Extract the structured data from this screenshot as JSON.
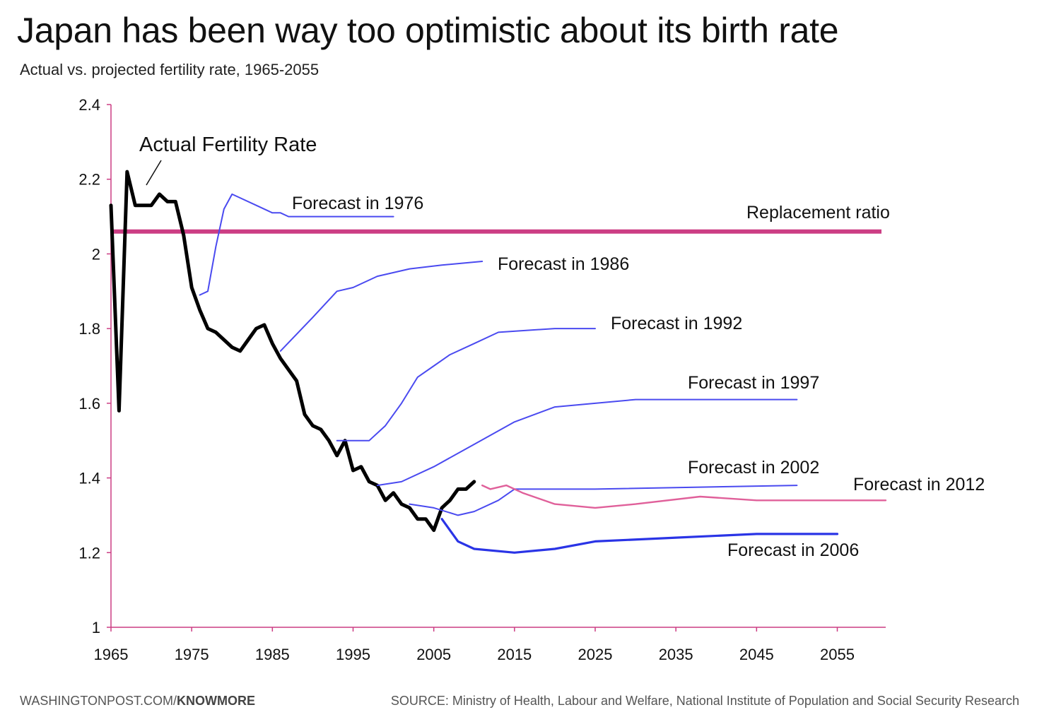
{
  "header": {
    "title": "Japan has been way too optimistic about its birth rate",
    "subtitle": "Actual vs. projected fertility rate, 1965-2055"
  },
  "footer": {
    "site": "WASHINGTONPOST.COM/",
    "section": "KNOWMORE",
    "source": "SOURCE: Ministry of Health, Labour and Welfare, National Institute of Population and Social Security Research"
  },
  "chart_data": {
    "type": "line",
    "title": "Japan has been way too optimistic about its birth rate",
    "subtitle": "Actual vs. projected fertility rate, 1965-2055",
    "xlim": [
      1965,
      2061
    ],
    "ylim": [
      1,
      2.4
    ],
    "x_ticks": [
      "1965",
      "1975",
      "1985",
      "1995",
      "2005",
      "2015",
      "2025",
      "2035",
      "2045",
      "2055"
    ],
    "y_ticks": [
      "1",
      "1.2",
      "1.4",
      "1.6",
      "1.8",
      "2",
      "2.2",
      "2.4"
    ],
    "colors": {
      "actual": "#000000",
      "forecast": "#4a4af0",
      "forecast_2006": "#2a34e6",
      "forecast_2012": "#e0609a",
      "replacement": "#cc3d84",
      "axis": "#cc3d84"
    },
    "replacement": {
      "label": "Replacement ratio",
      "value": 2.06
    },
    "series": [
      {
        "name": "Actual Fertility Rate",
        "color": "#000000",
        "points": [
          [
            1965,
            2.13
          ],
          [
            1966,
            1.58
          ],
          [
            1967,
            2.22
          ],
          [
            1968,
            2.13
          ],
          [
            1969,
            2.13
          ],
          [
            1970,
            2.13
          ],
          [
            1971,
            2.16
          ],
          [
            1972,
            2.14
          ],
          [
            1973,
            2.14
          ],
          [
            1974,
            2.05
          ],
          [
            1975,
            1.91
          ],
          [
            1976,
            1.85
          ],
          [
            1977,
            1.8
          ],
          [
            1978,
            1.79
          ],
          [
            1979,
            1.77
          ],
          [
            1980,
            1.75
          ],
          [
            1981,
            1.74
          ],
          [
            1982,
            1.77
          ],
          [
            1983,
            1.8
          ],
          [
            1984,
            1.81
          ],
          [
            1985,
            1.76
          ],
          [
            1986,
            1.72
          ],
          [
            1987,
            1.69
          ],
          [
            1988,
            1.66
          ],
          [
            1989,
            1.57
          ],
          [
            1990,
            1.54
          ],
          [
            1991,
            1.53
          ],
          [
            1992,
            1.5
          ],
          [
            1993,
            1.46
          ],
          [
            1994,
            1.5
          ],
          [
            1995,
            1.42
          ],
          [
            1996,
            1.43
          ],
          [
            1997,
            1.39
          ],
          [
            1998,
            1.38
          ],
          [
            1999,
            1.34
          ],
          [
            2000,
            1.36
          ],
          [
            2001,
            1.33
          ],
          [
            2002,
            1.32
          ],
          [
            2003,
            1.29
          ],
          [
            2004,
            1.29
          ],
          [
            2005,
            1.26
          ],
          [
            2006,
            1.32
          ],
          [
            2007,
            1.34
          ],
          [
            2008,
            1.37
          ],
          [
            2009,
            1.37
          ],
          [
            2010,
            1.39
          ]
        ]
      },
      {
        "name": "Forecast in 1976",
        "color": "#4a4af0",
        "points": [
          [
            1976,
            1.89
          ],
          [
            1977,
            1.9
          ],
          [
            1978,
            2.02
          ],
          [
            1979,
            2.12
          ],
          [
            1980,
            2.16
          ],
          [
            1981,
            2.15
          ],
          [
            1983,
            2.13
          ],
          [
            1985,
            2.11
          ],
          [
            1986,
            2.11
          ],
          [
            1987,
            2.1
          ],
          [
            1990,
            2.1
          ],
          [
            2000,
            2.1
          ]
        ]
      },
      {
        "name": "Forecast in 1986",
        "color": "#4a4af0",
        "points": [
          [
            1986,
            1.74
          ],
          [
            1990,
            1.83
          ],
          [
            1993,
            1.9
          ],
          [
            1995,
            1.91
          ],
          [
            1998,
            1.94
          ],
          [
            2002,
            1.96
          ],
          [
            2006,
            1.97
          ],
          [
            2011,
            1.98
          ]
        ]
      },
      {
        "name": "Forecast in 1992",
        "color": "#4a4af0",
        "points": [
          [
            1993,
            1.5
          ],
          [
            1997,
            1.5
          ],
          [
            1999,
            1.54
          ],
          [
            2001,
            1.6
          ],
          [
            2003,
            1.67
          ],
          [
            2005,
            1.7
          ],
          [
            2007,
            1.73
          ],
          [
            2010,
            1.76
          ],
          [
            2013,
            1.79
          ],
          [
            2020,
            1.8
          ],
          [
            2025,
            1.8
          ]
        ]
      },
      {
        "name": "Forecast in 1997",
        "color": "#4a4af0",
        "points": [
          [
            1998,
            1.38
          ],
          [
            2001,
            1.39
          ],
          [
            2005,
            1.43
          ],
          [
            2010,
            1.49
          ],
          [
            2015,
            1.55
          ],
          [
            2020,
            1.59
          ],
          [
            2025,
            1.6
          ],
          [
            2030,
            1.61
          ],
          [
            2040,
            1.61
          ],
          [
            2050,
            1.61
          ]
        ]
      },
      {
        "name": "Forecast in 2002",
        "color": "#4a4af0",
        "points": [
          [
            2002,
            1.33
          ],
          [
            2005,
            1.32
          ],
          [
            2008,
            1.3
          ],
          [
            2010,
            1.31
          ],
          [
            2013,
            1.34
          ],
          [
            2015,
            1.37
          ],
          [
            2025,
            1.37
          ],
          [
            2050,
            1.38
          ]
        ]
      },
      {
        "name": "Forecast in 2006",
        "color": "#2a34e6",
        "points": [
          [
            2006,
            1.29
          ],
          [
            2008,
            1.23
          ],
          [
            2010,
            1.21
          ],
          [
            2015,
            1.2
          ],
          [
            2020,
            1.21
          ],
          [
            2025,
            1.23
          ],
          [
            2035,
            1.24
          ],
          [
            2045,
            1.25
          ],
          [
            2050,
            1.25
          ],
          [
            2055,
            1.25
          ]
        ]
      },
      {
        "name": "Forecast in 2012",
        "color": "#e0609a",
        "points": [
          [
            2011,
            1.38
          ],
          [
            2012,
            1.37
          ],
          [
            2014,
            1.38
          ],
          [
            2016,
            1.36
          ],
          [
            2020,
            1.33
          ],
          [
            2025,
            1.32
          ],
          [
            2030,
            1.33
          ],
          [
            2038,
            1.35
          ],
          [
            2045,
            1.34
          ],
          [
            2050,
            1.34
          ],
          [
            2061,
            1.34
          ]
        ]
      }
    ],
    "labels": {
      "actual": "Actual Fertility Rate",
      "f1976": "Forecast in 1976",
      "f1986": "Forecast in 1986",
      "f1992": "Forecast in 1992",
      "f1997": "Forecast in 1997",
      "f2002": "Forecast in 2002",
      "f2006": "Forecast in 2006",
      "f2012": "Forecast in 2012",
      "replacement": "Replacement ratio"
    }
  }
}
